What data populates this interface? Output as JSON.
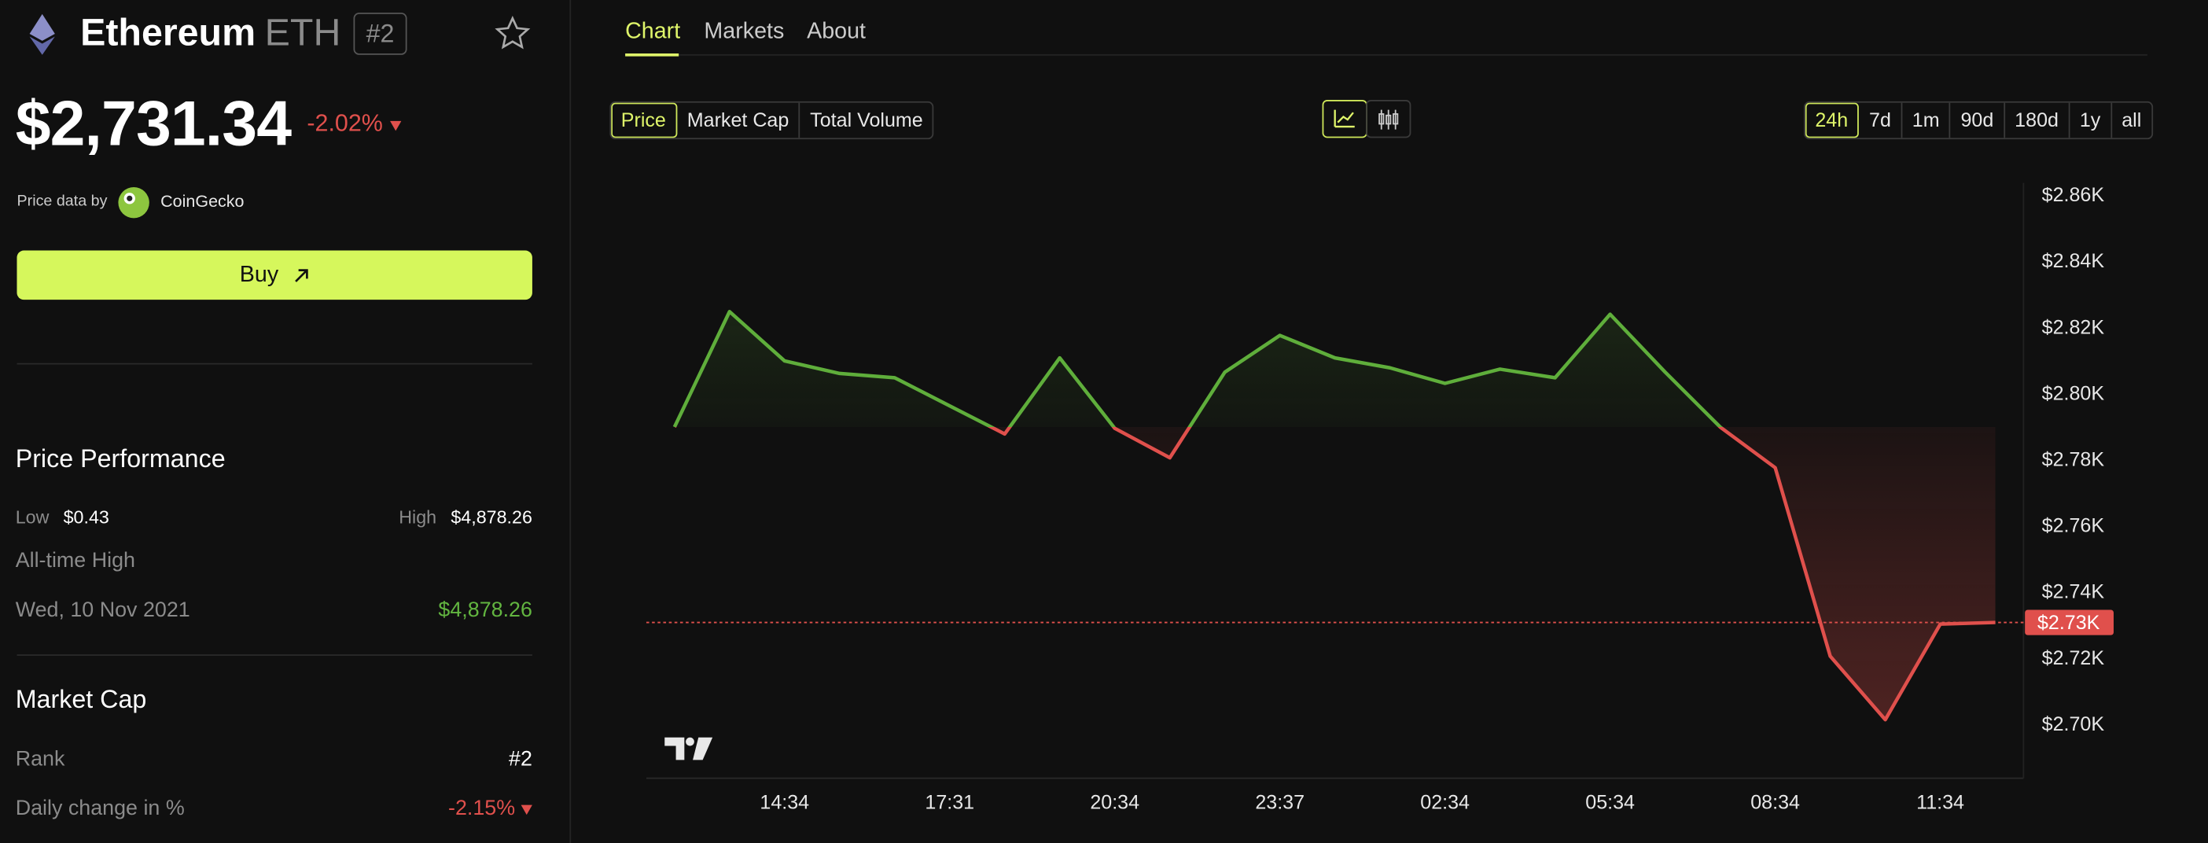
{
  "header": {
    "name": "Ethereum",
    "symbol": "ETH",
    "rank": "#2"
  },
  "price": {
    "value": "$2,731.34",
    "change": "-2.02%"
  },
  "source": {
    "prefix": "Price data by",
    "name": "CoinGecko"
  },
  "buy_button": "Buy",
  "performance": {
    "title": "Price Performance",
    "low_label": "Low",
    "low": "$0.43",
    "high_label": "High",
    "high": "$4,878.26",
    "ath_label": "All-time High",
    "ath_date": "Wed, 10 Nov 2021",
    "ath_value": "$4,878.26"
  },
  "market_cap": {
    "title": "Market Cap",
    "rank_label": "Rank",
    "rank": "#2",
    "daily_label": "Daily change in %",
    "daily": "-2.15%"
  },
  "tabs": [
    "Chart",
    "Markets",
    "About"
  ],
  "metrics": [
    "Price",
    "Market Cap",
    "Total Volume"
  ],
  "ranges": [
    "24h",
    "7d",
    "1m",
    "90d",
    "180d",
    "1y",
    "all"
  ],
  "chart": {
    "type": "line",
    "categories": [
      null,
      null,
      "14:34",
      null,
      null,
      "17:31",
      null,
      null,
      "20:34",
      null,
      null,
      "23:37",
      null,
      null,
      "02:34",
      null,
      null,
      "05:34",
      null,
      null,
      "08:34",
      null,
      null,
      "11:34",
      null
    ],
    "values": [
      2790.2,
      2825.1,
      2810.2,
      2806.4,
      2805.1,
      2796.6,
      2788.1,
      2811.1,
      2789.8,
      2780.9,
      2806.8,
      2817.9,
      2811.1,
      2808.1,
      2803.4,
      2807.7,
      2805.1,
      2824.3,
      2806.8,
      2790.2,
      2777.9,
      2720.9,
      2701.7,
      2730.6,
      2731.1
    ],
    "ylim": [
      2684,
      2864
    ],
    "yticks": [
      {
        "value": 2700,
        "label": "$2.70K"
      },
      {
        "value": 2720,
        "label": "$2.72K"
      },
      {
        "value": 2740,
        "label": "$2.74K"
      },
      {
        "value": 2760,
        "label": "$2.76K"
      },
      {
        "value": 2780,
        "label": "$2.78K"
      },
      {
        "value": 2800,
        "label": "$2.80K"
      },
      {
        "value": 2820,
        "label": "$2.82K"
      },
      {
        "value": 2840,
        "label": "$2.84K"
      },
      {
        "value": 2860,
        "label": "$2.86K"
      }
    ],
    "current": {
      "value": 2731.1,
      "label": "$2.73K"
    },
    "colors": {
      "up": "#5fae3b",
      "down": "#e0504c"
    }
  }
}
